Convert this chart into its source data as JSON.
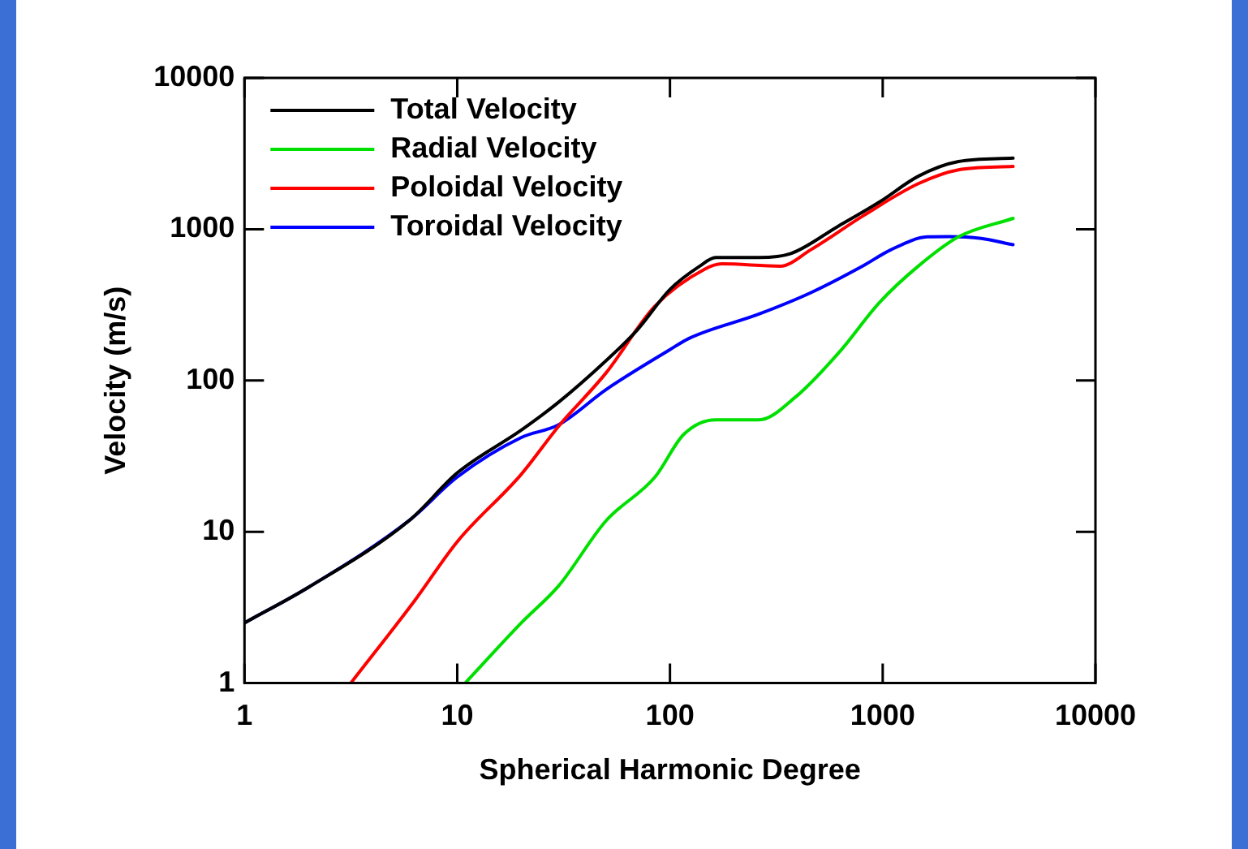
{
  "chart_data": {
    "type": "line",
    "xlabel": "Spherical Harmonic Degree",
    "ylabel": "Velocity (m/s)",
    "log": "xy",
    "xlim": [
      1,
      10000
    ],
    "xticks": [
      1,
      10,
      100,
      1000,
      10000
    ],
    "ylim": [
      1,
      10000
    ],
    "yticks": [
      1,
      10,
      100,
      1000,
      10000
    ],
    "grid": false,
    "legend": "top left",
    "marker": "none",
    "line_style": "solid",
    "series": [
      {
        "name": "Total Velocity",
        "color": "#000000",
        "x": [
          1,
          2,
          6,
          10,
          20,
          30,
          50,
          70,
          100,
          138,
          164,
          262,
          370,
          620,
          970,
          1470,
          2270,
          4100
        ],
        "values": [
          2.5,
          4.3,
          12,
          24.5,
          47,
          72,
          135,
          215,
          400,
          570,
          650,
          650,
          690,
          1050,
          1520,
          2240,
          2800,
          2950
        ]
      },
      {
        "name": "Radial Velocity",
        "color": "#00e000",
        "x": [
          10.9,
          20,
          30,
          50,
          85,
          116,
          164,
          262,
          390,
          620,
          970,
          1470,
          2270,
          4100
        ],
        "values": [
          1,
          2.5,
          4.4,
          11.8,
          23,
          44,
          55,
          55,
          78,
          152,
          330,
          570,
          890,
          1180
        ]
      },
      {
        "name": "Poloidal Velocity",
        "color": "#ff0000",
        "x": [
          3.16,
          6.3,
          10,
          20,
          30,
          50,
          85,
          146,
          175,
          330,
          458,
          812,
          1470,
          2270,
          4100
        ],
        "values": [
          1,
          3.5,
          8.6,
          24,
          50,
          112,
          310,
          545,
          590,
          570,
          730,
          1230,
          2000,
          2470,
          2600
        ]
      },
      {
        "name": "Toroidal Velocity",
        "color": "#0000ff",
        "x": [
          1,
          2,
          6,
          10,
          20,
          30,
          50,
          100,
          123,
          262,
          458,
          812,
          1090,
          1620,
          2050,
          2900,
          4100
        ],
        "values": [
          2.5,
          4.3,
          12,
          23,
          42,
          51,
          87,
          160,
          190,
          275,
          380,
          575,
          730,
          890,
          895,
          870,
          790
        ]
      }
    ]
  }
}
